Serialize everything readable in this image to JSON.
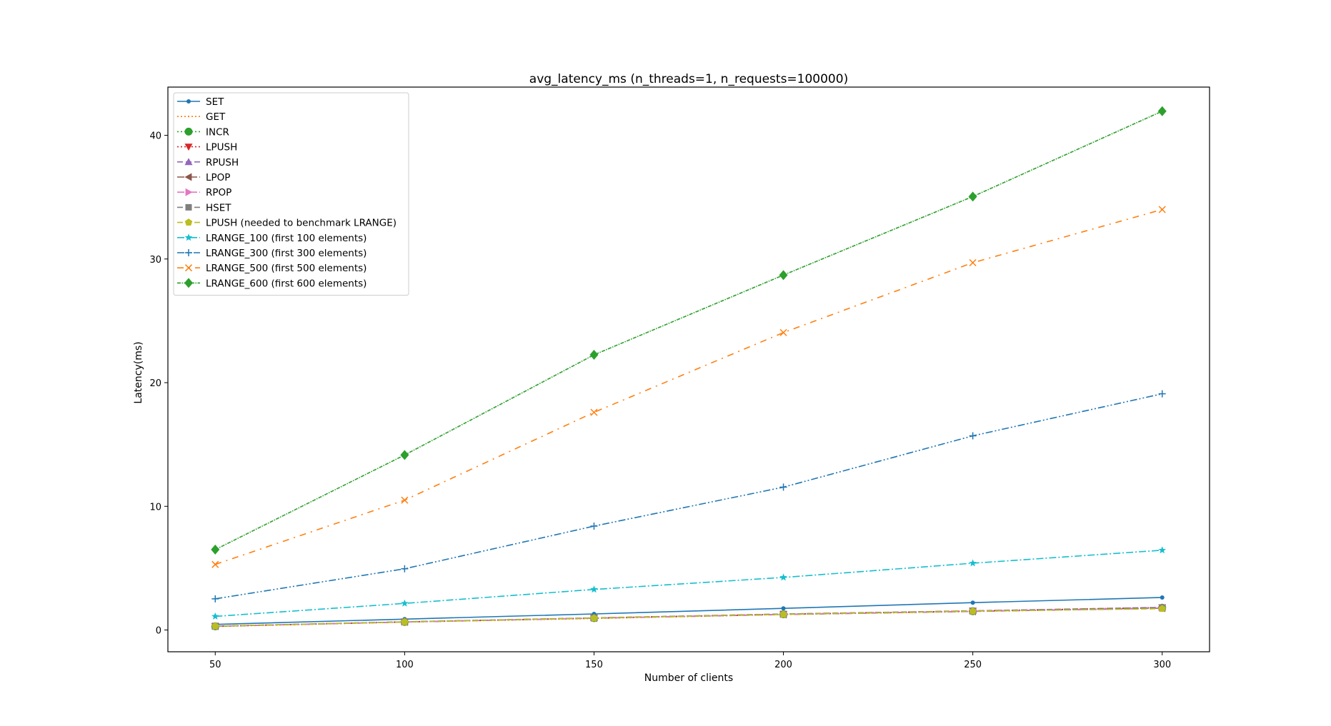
{
  "chart_data": {
    "type": "line",
    "title": "avg_latency_ms (n_threads=1, n_requests=100000)",
    "xlabel": "Number of clients",
    "ylabel": "Latency(ms)",
    "x": [
      50,
      100,
      150,
      200,
      250,
      300
    ],
    "xlim": [
      37.5,
      312.5
    ],
    "ylim": [
      -1.76,
      43.9
    ],
    "xticks": [
      50,
      100,
      150,
      200,
      250,
      300
    ],
    "yticks": [
      0,
      10,
      20,
      30,
      40
    ],
    "grid": false,
    "legend_position": "top-left",
    "series": [
      {
        "name": "SET",
        "color": "#1f77b4",
        "marker": "point",
        "dash": "solid",
        "values": [
          0.45,
          0.88,
          1.3,
          1.75,
          2.21,
          2.63
        ]
      },
      {
        "name": "GET",
        "color": "#ff7f0e",
        "marker": "pixel",
        "dash": "dotted",
        "values": [
          0.28,
          0.64,
          0.93,
          1.26,
          1.5,
          1.78
        ]
      },
      {
        "name": "INCR",
        "color": "#2ca02c",
        "marker": "circle",
        "dash": "dotted",
        "values": [
          0.3,
          0.65,
          0.96,
          1.27,
          1.52,
          1.8
        ]
      },
      {
        "name": "LPUSH",
        "color": "#d62728",
        "marker": "triangle-down",
        "dash": "dotted",
        "values": [
          0.31,
          0.66,
          0.97,
          1.28,
          1.54,
          1.82
        ]
      },
      {
        "name": "RPUSH",
        "color": "#9467bd",
        "marker": "triangle-up",
        "dash": "dashed",
        "values": [
          0.31,
          0.66,
          0.98,
          1.29,
          1.55,
          1.83
        ]
      },
      {
        "name": "LPOP",
        "color": "#8c564b",
        "marker": "triangle-left",
        "dash": "dashdot",
        "values": [
          0.3,
          0.64,
          0.95,
          1.25,
          1.5,
          1.76
        ]
      },
      {
        "name": "RPOP",
        "color": "#e377c2",
        "marker": "triangle-right",
        "dash": "dashdot",
        "values": [
          0.31,
          0.65,
          0.96,
          1.27,
          1.52,
          1.79
        ]
      },
      {
        "name": "HSET",
        "color": "#7f7f7f",
        "marker": "square",
        "dash": "dashed",
        "values": [
          0.3,
          0.66,
          0.97,
          1.29,
          1.54,
          1.81
        ]
      },
      {
        "name": "LPUSH (needed to benchmark LRANGE)",
        "color": "#bcbd22",
        "marker": "pentagon",
        "dash": "dashed",
        "values": [
          0.31,
          0.65,
          0.96,
          1.26,
          1.52,
          1.72
        ]
      },
      {
        "name": "LRANGE_100 (first 100 elements)",
        "color": "#17becf",
        "marker": "star",
        "dash": "dashdot",
        "values": [
          1.1,
          2.15,
          3.28,
          4.25,
          5.4,
          6.45
        ]
      },
      {
        "name": "LRANGE_300 (first 300 elements)",
        "color": "#1f77b4",
        "marker": "plus",
        "dash": "dashdotdot",
        "values": [
          2.52,
          4.95,
          8.4,
          11.55,
          15.7,
          19.1
        ]
      },
      {
        "name": "LRANGE_500 (first 500 elements)",
        "color": "#ff7f0e",
        "marker": "x",
        "dash": "dashdotspaced",
        "values": [
          5.3,
          10.5,
          17.6,
          24.05,
          29.7,
          34.0
        ]
      },
      {
        "name": "LRANGE_600 (first 600 elements)",
        "color": "#2ca02c",
        "marker": "diamond",
        "dash": "dashdotdense",
        "values": [
          6.5,
          14.15,
          22.25,
          28.7,
          35.05,
          41.95
        ]
      }
    ]
  }
}
